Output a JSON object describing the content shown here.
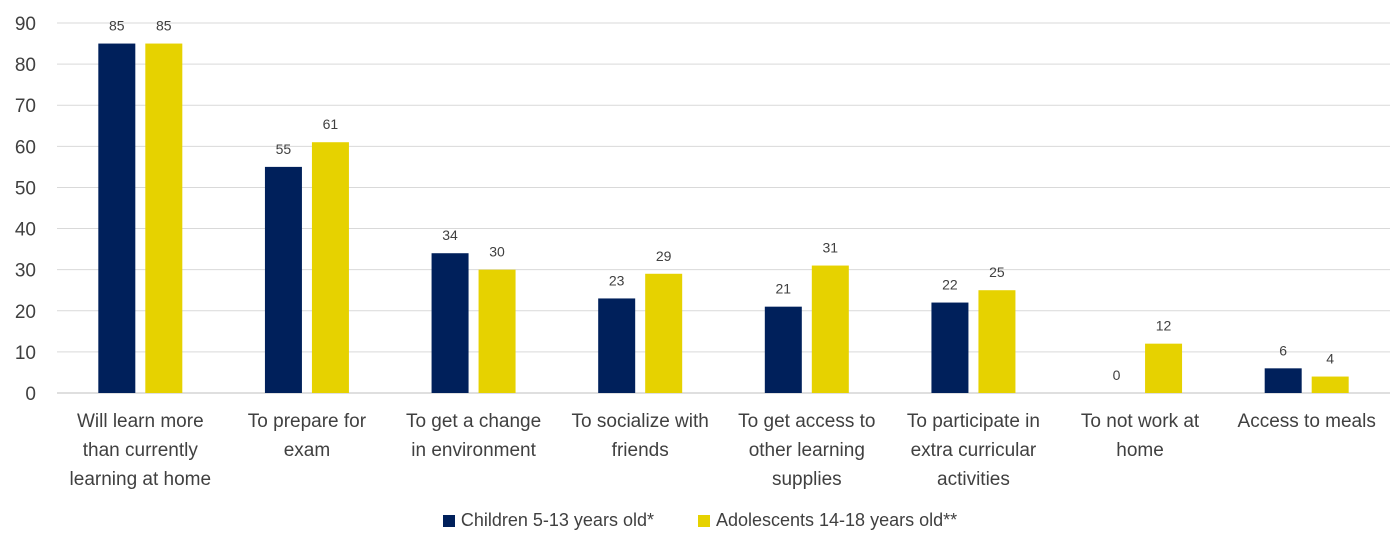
{
  "chart_data": {
    "type": "bar",
    "categories": [
      [
        "Will learn more",
        "than currently",
        "learning at home"
      ],
      [
        "To prepare for",
        "exam"
      ],
      [
        "To get a change",
        "in environment"
      ],
      [
        "To socialize with",
        "friends"
      ],
      [
        "To get access to",
        "other learning",
        "supplies"
      ],
      [
        "To participate in",
        "extra curricular",
        "activities"
      ],
      [
        "To not work at",
        "home"
      ],
      [
        "Access to meals"
      ]
    ],
    "series": [
      {
        "name": "Children 5-13 years old*",
        "color": "#00205b",
        "values": [
          85,
          55,
          34,
          23,
          21,
          22,
          0,
          6
        ]
      },
      {
        "name": "Adolescents 14-18 years old**",
        "color": "#e6d200",
        "values": [
          85,
          61,
          30,
          29,
          31,
          25,
          12,
          4
        ]
      }
    ],
    "ylim": [
      0,
      90
    ],
    "yticks": [
      0,
      10,
      20,
      30,
      40,
      50,
      60,
      70,
      80,
      90
    ],
    "grid": true,
    "legend_position": "bottom"
  }
}
